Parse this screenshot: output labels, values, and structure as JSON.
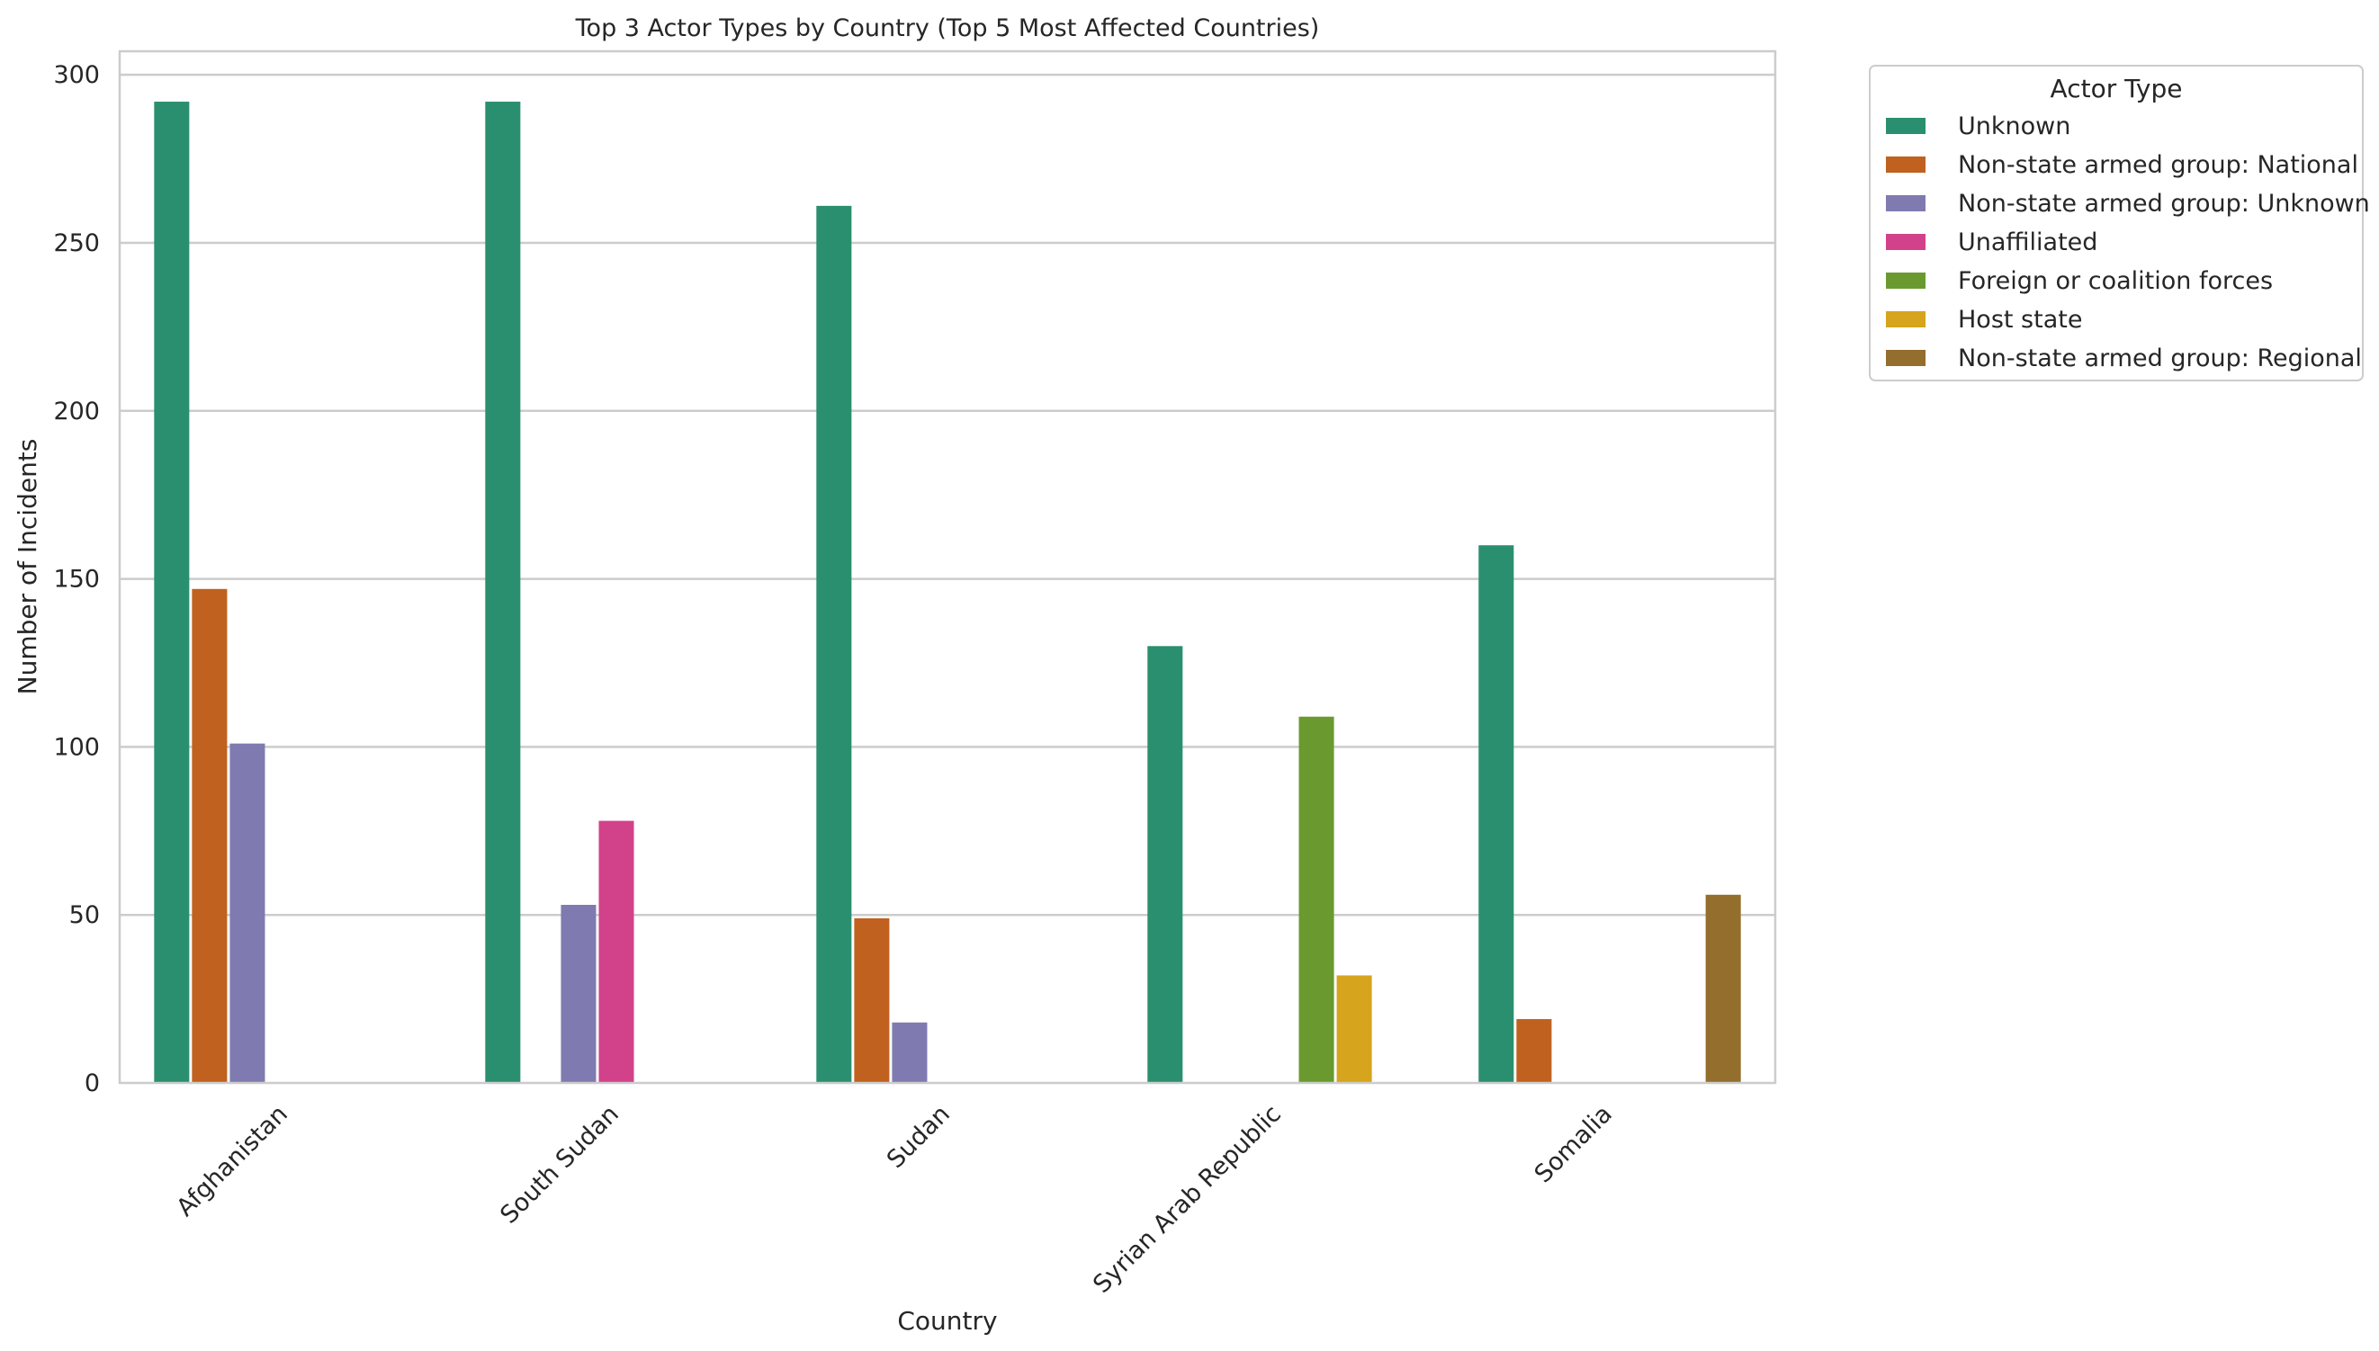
{
  "chart_data": {
    "type": "bar",
    "title": "Top 3 Actor Types by Country (Top 5 Most Affected Countries)",
    "xlabel": "Country",
    "ylabel": "Number of Incidents",
    "ylim": [
      0,
      307
    ],
    "yticks": [
      0,
      50,
      100,
      150,
      200,
      250,
      300
    ],
    "grid": "horizontal",
    "legend_position": "outside-right",
    "legend_title": "Actor Type",
    "categories": [
      "Afghanistan",
      "South Sudan",
      "Sudan",
      "Syrian Arab Republic",
      "Somalia"
    ],
    "series": [
      {
        "name": "Unknown",
        "color": "#2a8f6f",
        "values": [
          292,
          292,
          261,
          130,
          160
        ]
      },
      {
        "name": "Non-state armed group: National",
        "color": "#c0611f",
        "values": [
          147,
          null,
          49,
          null,
          19
        ]
      },
      {
        "name": "Non-state armed group: Unknown",
        "color": "#7f7bb0",
        "values": [
          101,
          53,
          18,
          null,
          null
        ]
      },
      {
        "name": "Unaffiliated",
        "color": "#d2428b",
        "values": [
          null,
          78,
          null,
          null,
          null
        ]
      },
      {
        "name": "Foreign or coalition forces",
        "color": "#6a9a2f",
        "values": [
          null,
          null,
          null,
          109,
          null
        ]
      },
      {
        "name": "Host state",
        "color": "#d6a41d",
        "values": [
          null,
          null,
          null,
          32,
          null
        ]
      },
      {
        "name": "Non-state armed group: Regional",
        "color": "#936e2d",
        "values": [
          null,
          null,
          null,
          null,
          56
        ]
      }
    ]
  }
}
